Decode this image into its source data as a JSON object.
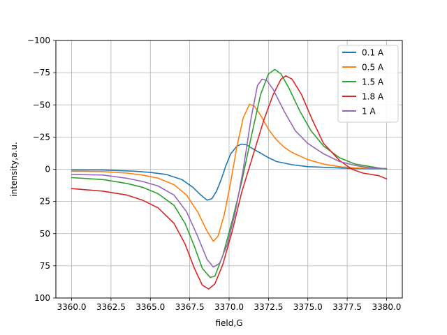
{
  "chart_data": {
    "type": "line",
    "xlabel": "field,G",
    "ylabel": "intensity,a.u.",
    "xlim": [
      3359.0,
      3381.0
    ],
    "ylim": [
      100,
      -100
    ],
    "y_inverted": true,
    "grid": true,
    "legend_position": "upper right",
    "xticks": [
      3360.0,
      3362.5,
      3365.0,
      3367.5,
      3370.0,
      3372.5,
      3375.0,
      3377.5,
      3380.0
    ],
    "xtick_labels": [
      "3360.0",
      "3362.5",
      "3365.0",
      "3367.5",
      "3370.0",
      "3372.5",
      "3375.0",
      "3377.5",
      "3380.0"
    ],
    "yticks": [
      -100,
      -75,
      -50,
      -25,
      0,
      25,
      50,
      75,
      100
    ],
    "ytick_labels": [
      "−100",
      "−75",
      "−50",
      "−25",
      "0",
      "25",
      "50",
      "75",
      "100"
    ],
    "series": [
      {
        "name": "0.1 A",
        "color": "#1f77b4",
        "points": [
          [
            3360,
            0.5
          ],
          [
            3362,
            0.6
          ],
          [
            3364,
            1.5
          ],
          [
            3365,
            2.5
          ],
          [
            3366,
            4
          ],
          [
            3367,
            8
          ],
          [
            3367.7,
            14
          ],
          [
            3368.2,
            20
          ],
          [
            3368.6,
            24
          ],
          [
            3368.9,
            23
          ],
          [
            3369.2,
            17
          ],
          [
            3369.5,
            8
          ],
          [
            3369.8,
            -3
          ],
          [
            3370.1,
            -12
          ],
          [
            3370.5,
            -18
          ],
          [
            3370.8,
            -19.5
          ],
          [
            3371.1,
            -19
          ],
          [
            3371.5,
            -16
          ],
          [
            3372,
            -12.5
          ],
          [
            3372.5,
            -9
          ],
          [
            3373,
            -6
          ],
          [
            3374,
            -3.5
          ],
          [
            3375,
            -2
          ],
          [
            3376,
            -1.5
          ],
          [
            3378,
            -0.5
          ],
          [
            3380,
            -0.3
          ]
        ]
      },
      {
        "name": "0.5 A",
        "color": "#ff7f0e",
        "points": [
          [
            3360,
            1.5
          ],
          [
            3362,
            1.8
          ],
          [
            3363.5,
            3
          ],
          [
            3364.5,
            4.5
          ],
          [
            3365.5,
            7
          ],
          [
            3366.5,
            12
          ],
          [
            3367.3,
            20
          ],
          [
            3368,
            33
          ],
          [
            3368.6,
            48
          ],
          [
            3369,
            56
          ],
          [
            3369.3,
            52
          ],
          [
            3369.7,
            35
          ],
          [
            3370.1,
            10
          ],
          [
            3370.5,
            -18
          ],
          [
            3370.9,
            -40
          ],
          [
            3371.3,
            -50.5
          ],
          [
            3371.6,
            -49
          ],
          [
            3372,
            -42
          ],
          [
            3372.5,
            -31
          ],
          [
            3373,
            -23
          ],
          [
            3373.5,
            -17
          ],
          [
            3374,
            -13
          ],
          [
            3375,
            -7.5
          ],
          [
            3376,
            -4
          ],
          [
            3377,
            -2
          ],
          [
            3378,
            -1
          ],
          [
            3380,
            -0.5
          ]
        ]
      },
      {
        "name": "1.5 A",
        "color": "#2ca02c",
        "points": [
          [
            3360,
            6.5
          ],
          [
            3362,
            8
          ],
          [
            3363.5,
            11
          ],
          [
            3364.5,
            14
          ],
          [
            3365.5,
            19
          ],
          [
            3366.5,
            28
          ],
          [
            3367.2,
            42
          ],
          [
            3367.8,
            60
          ],
          [
            3368.3,
            77
          ],
          [
            3368.8,
            84
          ],
          [
            3369.1,
            83
          ],
          [
            3369.6,
            67
          ],
          [
            3370.2,
            40
          ],
          [
            3370.8,
            10
          ],
          [
            3371.4,
            -25
          ],
          [
            3372,
            -58
          ],
          [
            3372.5,
            -74
          ],
          [
            3372.9,
            -77.5
          ],
          [
            3373.3,
            -74
          ],
          [
            3373.8,
            -63
          ],
          [
            3374.5,
            -45
          ],
          [
            3375.2,
            -30
          ],
          [
            3376,
            -18
          ],
          [
            3377,
            -9
          ],
          [
            3378,
            -4
          ],
          [
            3379,
            -2
          ],
          [
            3380,
            0
          ]
        ]
      },
      {
        "name": "1.8 A",
        "color": "#d62728",
        "points": [
          [
            3360,
            15
          ],
          [
            3362,
            17
          ],
          [
            3363.5,
            20
          ],
          [
            3364.5,
            24
          ],
          [
            3365.5,
            30
          ],
          [
            3366.5,
            42
          ],
          [
            3367.2,
            58
          ],
          [
            3367.8,
            77
          ],
          [
            3368.3,
            90
          ],
          [
            3368.7,
            93
          ],
          [
            3369.1,
            89
          ],
          [
            3369.6,
            74
          ],
          [
            3370.2,
            48
          ],
          [
            3370.8,
            18
          ],
          [
            3371.5,
            -10
          ],
          [
            3372.2,
            -38
          ],
          [
            3372.8,
            -58
          ],
          [
            3373.3,
            -70
          ],
          [
            3373.6,
            -72.5
          ],
          [
            3374,
            -70
          ],
          [
            3374.6,
            -58
          ],
          [
            3375.3,
            -38
          ],
          [
            3376,
            -20
          ],
          [
            3377,
            -7
          ],
          [
            3377.8,
            0
          ],
          [
            3378.5,
            3
          ],
          [
            3379.5,
            5
          ],
          [
            3380,
            7.5
          ]
        ]
      },
      {
        "name": "1 A",
        "color": "#9467bd",
        "points": [
          [
            3360,
            4
          ],
          [
            3362,
            4.5
          ],
          [
            3363.5,
            7
          ],
          [
            3364.5,
            9.5
          ],
          [
            3365.5,
            13
          ],
          [
            3366.5,
            20
          ],
          [
            3367.3,
            33
          ],
          [
            3368,
            52
          ],
          [
            3368.6,
            70
          ],
          [
            3369,
            76
          ],
          [
            3369.4,
            73
          ],
          [
            3369.9,
            58
          ],
          [
            3370.4,
            33
          ],
          [
            3370.9,
            0
          ],
          [
            3371.4,
            -40
          ],
          [
            3371.8,
            -65
          ],
          [
            3372.1,
            -70
          ],
          [
            3372.4,
            -69
          ],
          [
            3372.8,
            -62
          ],
          [
            3373.5,
            -45
          ],
          [
            3374.2,
            -30
          ],
          [
            3375,
            -20
          ],
          [
            3376,
            -12
          ],
          [
            3377,
            -6
          ],
          [
            3378,
            -3
          ],
          [
            3379,
            -1
          ],
          [
            3380,
            -0.5
          ]
        ]
      }
    ]
  }
}
